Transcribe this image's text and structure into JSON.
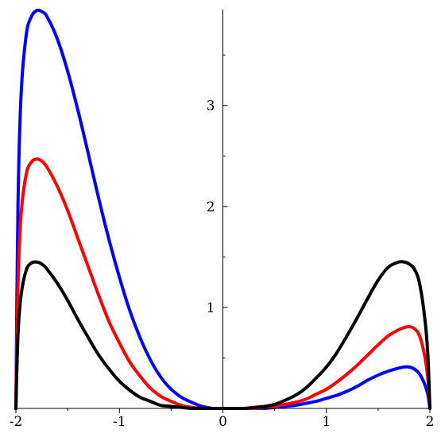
{
  "chart_data": {
    "type": "line",
    "title": "",
    "xlabel": "",
    "ylabel": "",
    "xlim": [
      -2,
      2
    ],
    "ylim": [
      0,
      3.95
    ],
    "grid": false,
    "legend": "none",
    "x_ticks": [
      {
        "value": -2,
        "label": "-2"
      },
      {
        "value": -1,
        "label": "-1"
      },
      {
        "value": 0,
        "label": "0"
      },
      {
        "value": 1,
        "label": "1"
      },
      {
        "value": 2,
        "label": "2"
      }
    ],
    "x_minor_ticks": [
      -1.5,
      -0.5,
      0.5,
      1.5
    ],
    "y_ticks": [
      {
        "value": 1,
        "label": "1"
      },
      {
        "value": 2,
        "label": "2"
      },
      {
        "value": 3,
        "label": "3"
      }
    ],
    "y_minor_ticks": [
      0.5,
      1.5,
      2.5,
      3.5
    ],
    "x": [
      -2.0,
      -1.98,
      -1.95,
      -1.9,
      -1.85,
      -1.8,
      -1.75,
      -1.7,
      -1.6,
      -1.5,
      -1.4,
      -1.3,
      -1.2,
      -1.1,
      -1.0,
      -0.9,
      -0.8,
      -0.7,
      -0.6,
      -0.5,
      -0.4,
      -0.3,
      -0.2,
      -0.1,
      0.0,
      0.1,
      0.2,
      0.3,
      0.4,
      0.5,
      0.6,
      0.7,
      0.8,
      0.9,
      1.0,
      1.1,
      1.2,
      1.3,
      1.4,
      1.5,
      1.6,
      1.7,
      1.75,
      1.8,
      1.85,
      1.9,
      1.95,
      1.98,
      2.0
    ],
    "series": [
      {
        "color": "#0000ff",
        "values": [
          0.0,
          2.0,
          3.1,
          3.7,
          3.88,
          3.94,
          3.93,
          3.88,
          3.66,
          3.34,
          2.95,
          2.52,
          2.08,
          1.67,
          1.3,
          0.97,
          0.7,
          0.48,
          0.31,
          0.19,
          0.11,
          0.06,
          0.02,
          0.0,
          0.0,
          0.0,
          0.0,
          0.0,
          0.0,
          0.01,
          0.02,
          0.03,
          0.05,
          0.07,
          0.1,
          0.13,
          0.17,
          0.22,
          0.28,
          0.33,
          0.37,
          0.4,
          0.41,
          0.41,
          0.39,
          0.34,
          0.24,
          0.14,
          0.0
        ]
      },
      {
        "color": "#ff0000",
        "values": [
          0.0,
          1.22,
          1.92,
          2.32,
          2.44,
          2.47,
          2.45,
          2.39,
          2.2,
          1.96,
          1.68,
          1.4,
          1.12,
          0.86,
          0.65,
          0.46,
          0.32,
          0.2,
          0.12,
          0.07,
          0.03,
          0.01,
          0.0,
          0.0,
          0.0,
          0.0,
          0.0,
          0.0,
          0.01,
          0.02,
          0.04,
          0.06,
          0.09,
          0.14,
          0.19,
          0.26,
          0.34,
          0.43,
          0.53,
          0.63,
          0.72,
          0.78,
          0.8,
          0.81,
          0.79,
          0.72,
          0.52,
          0.3,
          0.0
        ]
      },
      {
        "color": "#000000",
        "values": [
          0.0,
          0.72,
          1.12,
          1.37,
          1.44,
          1.45,
          1.43,
          1.38,
          1.24,
          1.07,
          0.88,
          0.7,
          0.53,
          0.39,
          0.27,
          0.18,
          0.11,
          0.07,
          0.03,
          0.02,
          0.01,
          0.0,
          0.0,
          0.0,
          0.0,
          0.0,
          0.0,
          0.01,
          0.02,
          0.04,
          0.08,
          0.13,
          0.2,
          0.3,
          0.41,
          0.55,
          0.72,
          0.9,
          1.09,
          1.27,
          1.4,
          1.45,
          1.45,
          1.43,
          1.38,
          1.24,
          0.9,
          0.54,
          0.0
        ]
      }
    ]
  }
}
